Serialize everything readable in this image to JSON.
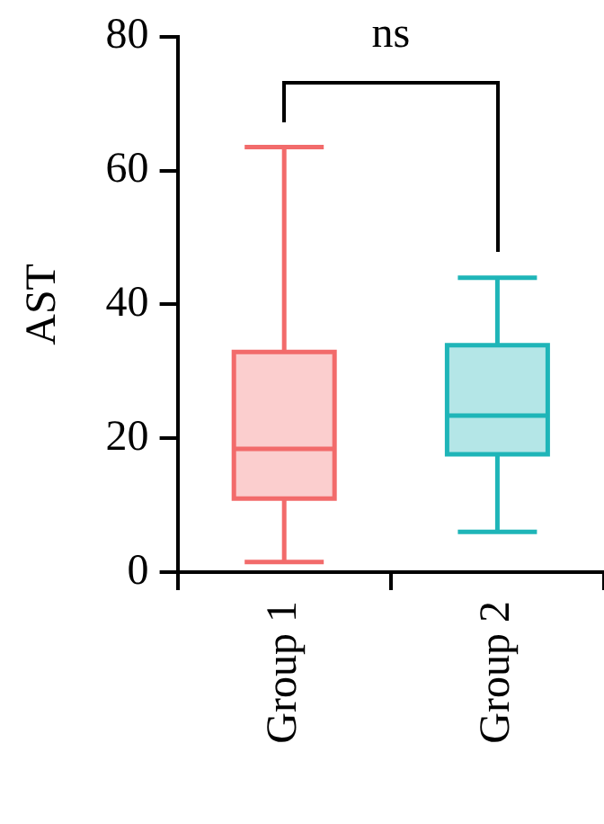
{
  "chart_data": {
    "type": "box",
    "ylabel": "AST",
    "categories": [
      "Group 1",
      "Group 2"
    ],
    "series": [
      {
        "colors": [
          "#f26b6b",
          "#1fb5b8"
        ],
        "boxes": [
          {
            "low": 1.5,
            "q1": 11,
            "median": 18.4,
            "q3": 32.9,
            "high": 63.5
          },
          {
            "low": 6,
            "q1": 17.6,
            "median": 23.4,
            "q3": 33.9,
            "high": 44
          }
        ]
      }
    ],
    "ylim": [
      0,
      80
    ],
    "yticks": [
      0,
      20,
      40,
      60,
      80
    ],
    "grid": false,
    "legend": false,
    "annotations": [
      "ns"
    ]
  }
}
